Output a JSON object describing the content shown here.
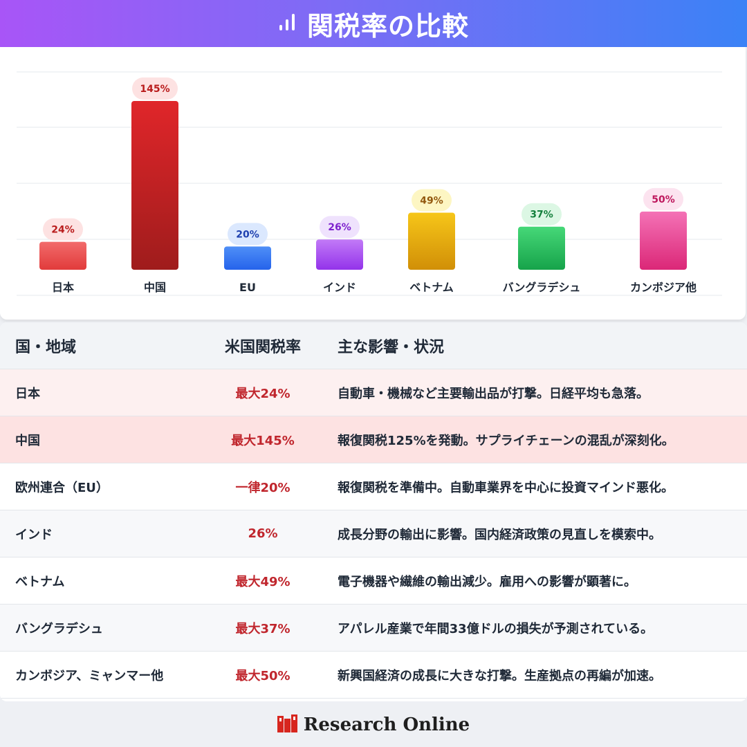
{
  "header": {
    "title": "関税率の比較",
    "icon": "bar-chart-icon"
  },
  "chart_data": {
    "type": "bar",
    "categories": [
      "日本",
      "中国",
      "EU",
      "インド",
      "ベトナム",
      "バングラデシュ",
      "カンボジア他"
    ],
    "values": [
      24,
      145,
      20,
      26,
      49,
      37,
      50
    ],
    "value_labels": [
      "24%",
      "145%",
      "20%",
      "26%",
      "49%",
      "37%",
      "50%"
    ],
    "grid": true,
    "colors": {
      "bar_top": [
        "#f26b6b",
        "#e0262a",
        "#4f8ff7",
        "#c27af7",
        "#f6c619",
        "#46d878",
        "#f472b6"
      ],
      "bar_bottom": [
        "#e13b3b",
        "#9f1c1c",
        "#2563eb",
        "#9333ea",
        "#d18f07",
        "#16a34a",
        "#db2777"
      ],
      "pill_bg": [
        "#fde2e2",
        "#fde2e2",
        "#dbe8fe",
        "#efe2fd",
        "#fdf6c3",
        "#dcf7e4",
        "#fce3ef"
      ],
      "pill_text": [
        "#b91c1c",
        "#b91c1c",
        "#1e40af",
        "#7e22ce",
        "#92580e",
        "#15803d",
        "#be185d"
      ]
    }
  },
  "table": {
    "headers": [
      "国・地域",
      "米国関税率",
      "主な影響・状況"
    ],
    "rows": [
      {
        "region": "日本",
        "rate": "最大24%",
        "impact": "自動車・機械など主要輸出品が打撃。日経平均も急落。",
        "bg": "#fdf0f0"
      },
      {
        "region": "中国",
        "rate": "最大145%",
        "impact": "報復関税125%を発動。サプライチェーンの混乱が深刻化。",
        "bg": "#fde2e2"
      },
      {
        "region": "欧州連合（EU）",
        "rate": "一律20%",
        "impact": "報復関税を準備中。自動車業界を中心に投資マインド悪化。",
        "bg": "#ffffff"
      },
      {
        "region": "インド",
        "rate": "26%",
        "impact": "成長分野の輸出に影響。国内経済政策の見直しを模索中。",
        "bg": "#f7f8fa"
      },
      {
        "region": "ベトナム",
        "rate": "最大49%",
        "impact": "電子機器や繊維の輸出減少。雇用への影響が顕著に。",
        "bg": "#ffffff"
      },
      {
        "region": "バングラデシュ",
        "rate": "最大37%",
        "impact": "アパレル産業で年間33億ドルの損失が予測されている。",
        "bg": "#f7f8fa"
      },
      {
        "region": "カンボジア、ミャンマー他",
        "rate": "最大50%",
        "impact": "新興国経済の成長に大きな打撃。生産拠点の再編が加速。",
        "bg": "#ffffff"
      }
    ]
  },
  "footer": {
    "brand": "Research Online",
    "logo": "research-online-logo"
  }
}
